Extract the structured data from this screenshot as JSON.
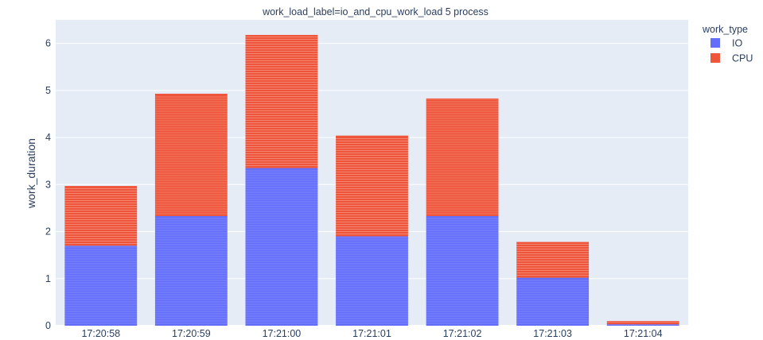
{
  "chart_data": {
    "type": "bar",
    "barmode": "stack",
    "title": "work_load_label=io_and_cpu_work_load 5 process",
    "xlabel": "",
    "ylabel": "work_duration",
    "categories": [
      "17:20:58",
      "17:20:59",
      "17:21:00",
      "17:21:01",
      "17:21:02",
      "17:21:03",
      "17:21:04"
    ],
    "ylim": [
      0,
      6.5
    ],
    "yticks": [
      0,
      1,
      2,
      3,
      4,
      5,
      6
    ],
    "legend": {
      "title": "work_type",
      "placement": "top-right"
    },
    "grid": true,
    "series": [
      {
        "name": "IO",
        "color": "#636efa",
        "values": [
          1.7,
          2.33,
          3.35,
          1.9,
          2.33,
          1.02,
          0.03
        ]
      },
      {
        "name": "CPU",
        "color": "#ef553b",
        "values": [
          1.27,
          2.6,
          2.83,
          2.14,
          2.5,
          0.76,
          0.07
        ]
      }
    ]
  }
}
